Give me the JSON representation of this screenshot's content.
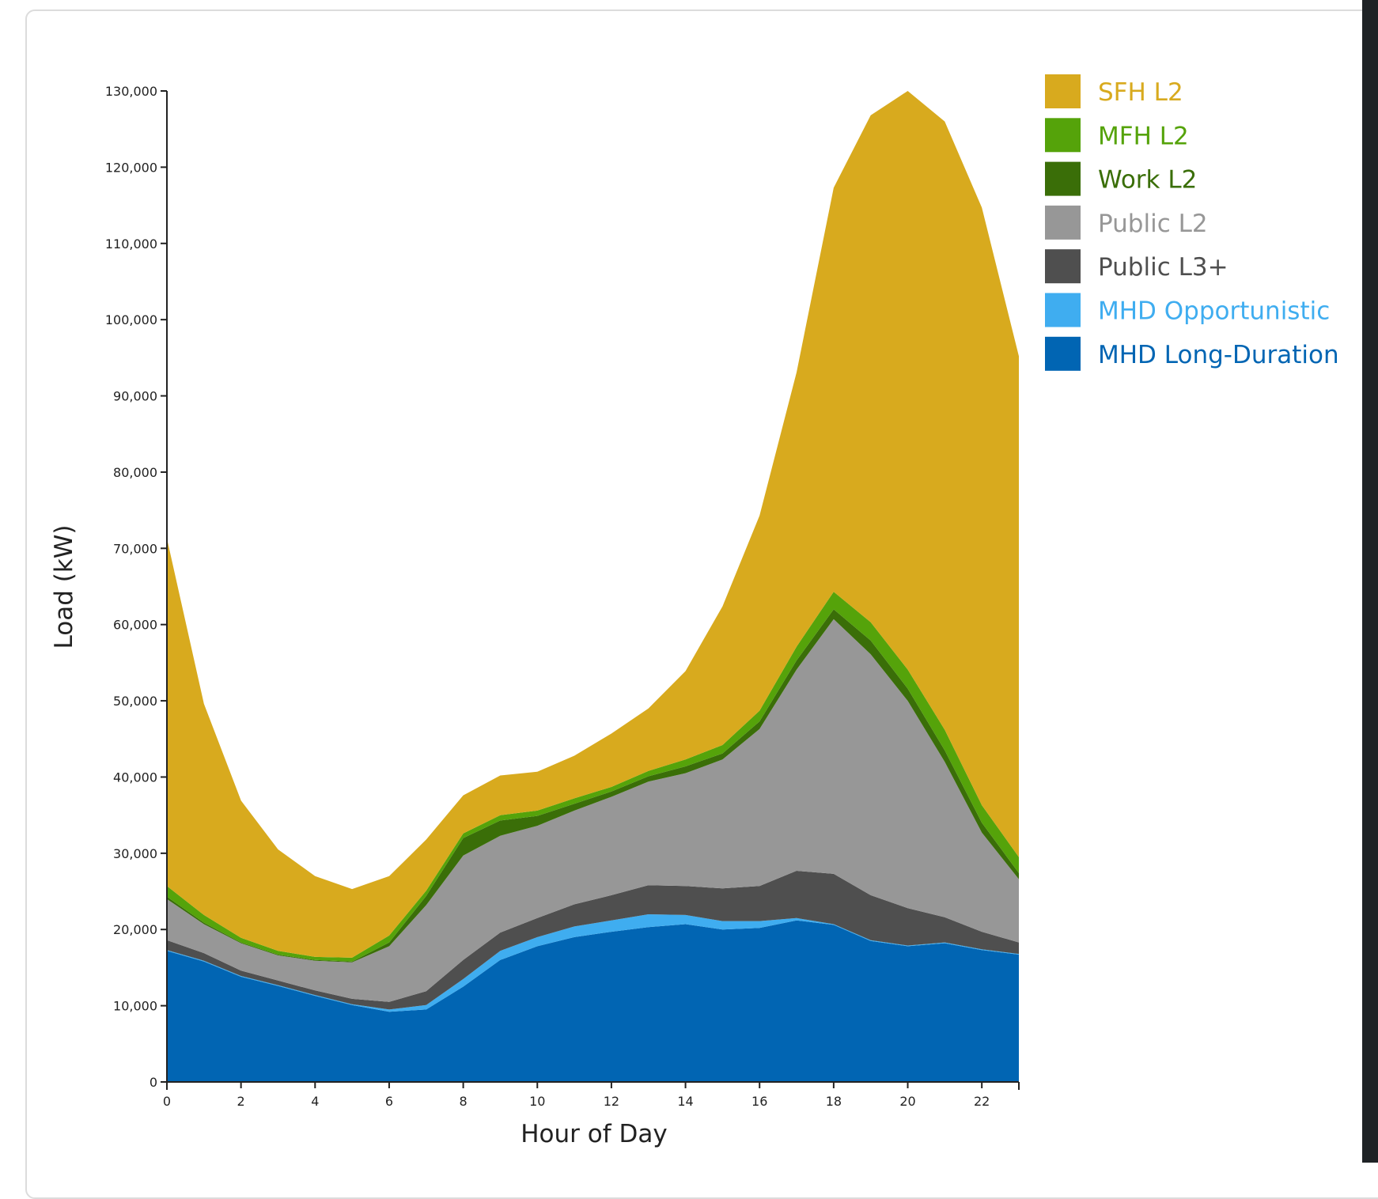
{
  "chart_data": {
    "type": "area",
    "stacked": true,
    "xlabel": "Hour of Day",
    "ylabel": "Load (kW)",
    "x": [
      0,
      1,
      2,
      3,
      4,
      5,
      6,
      7,
      8,
      9,
      10,
      11,
      12,
      13,
      14,
      15,
      16,
      17,
      18,
      19,
      20,
      21,
      22,
      23
    ],
    "xlim": [
      0,
      23
    ],
    "ylim": [
      0,
      130000
    ],
    "x_ticks": [
      0,
      2,
      4,
      6,
      8,
      10,
      12,
      14,
      16,
      18,
      20,
      22
    ],
    "y_ticks": [
      0,
      10000,
      20000,
      30000,
      40000,
      50000,
      60000,
      70000,
      80000,
      90000,
      100000,
      110000,
      120000,
      130000
    ],
    "y_tick_labels": [
      "0",
      "10,000",
      "20,000",
      "30,000",
      "40,000",
      "50,000",
      "60,000",
      "70,000",
      "80,000",
      "90,000",
      "100,000",
      "110,000",
      "120,000",
      "130,000"
    ],
    "grid": false,
    "legend_position": "top-right",
    "series": [
      {
        "name": "MHD Long-Duration",
        "color": "#0165b3",
        "values": [
          17200,
          15800,
          13800,
          12600,
          11300,
          10100,
          9200,
          9500,
          12500,
          16000,
          17800,
          19000,
          19700,
          20300,
          20700,
          20000,
          20200,
          21200,
          20600,
          18500,
          17800,
          18200,
          17300,
          16700
        ]
      },
      {
        "name": "MHD Opportunistic",
        "color": "#3fadf0",
        "values": [
          100,
          100,
          100,
          100,
          100,
          100,
          300,
          600,
          1000,
          1200,
          1200,
          1400,
          1500,
          1700,
          1200,
          1100,
          900,
          300,
          100,
          100,
          100,
          100,
          100,
          100
        ]
      },
      {
        "name": "Public L3+",
        "color": "#4f4f4f",
        "values": [
          1300,
          1000,
          700,
          600,
          600,
          700,
          1000,
          1800,
          2500,
          2400,
          2500,
          2900,
          3300,
          3800,
          3800,
          4300,
          4600,
          6200,
          6600,
          5900,
          4900,
          3300,
          2300,
          1500
        ]
      },
      {
        "name": "Public L2",
        "color": "#979797",
        "values": [
          5400,
          3800,
          3600,
          3300,
          3900,
          4800,
          7300,
          11300,
          13700,
          12700,
          12100,
          12300,
          12900,
          13600,
          14800,
          16900,
          20600,
          26400,
          33400,
          31600,
          27200,
          20400,
          13000,
          8300
        ]
      },
      {
        "name": "Work L2",
        "color": "#3a6e08",
        "values": [
          300,
          200,
          100,
          100,
          100,
          100,
          500,
          1200,
          2300,
          2000,
          1300,
          900,
          700,
          700,
          900,
          800,
          1000,
          1200,
          1300,
          1800,
          1600,
          1500,
          1300,
          800
        ]
      },
      {
        "name": "MFH L2",
        "color": "#55a30a",
        "values": [
          1400,
          1000,
          600,
          500,
          400,
          500,
          900,
          700,
          600,
          700,
          700,
          700,
          600,
          700,
          900,
          1100,
          1400,
          1800,
          2300,
          2400,
          2500,
          2700,
          2300,
          2100
        ]
      },
      {
        "name": "SFH L2",
        "color": "#d8aa1e",
        "values": [
          45600,
          27700,
          18000,
          13300,
          10600,
          9000,
          7800,
          6700,
          5000,
          5200,
          5100,
          5600,
          7000,
          8200,
          11600,
          18200,
          25600,
          36000,
          53000,
          66500,
          75900,
          79800,
          78400,
          65700
        ]
      }
    ],
    "legend_order": [
      "SFH L2",
      "MFH L2",
      "Work L2",
      "Public L2",
      "Public L3+",
      "MHD Opportunistic",
      "MHD Long-Duration"
    ]
  }
}
